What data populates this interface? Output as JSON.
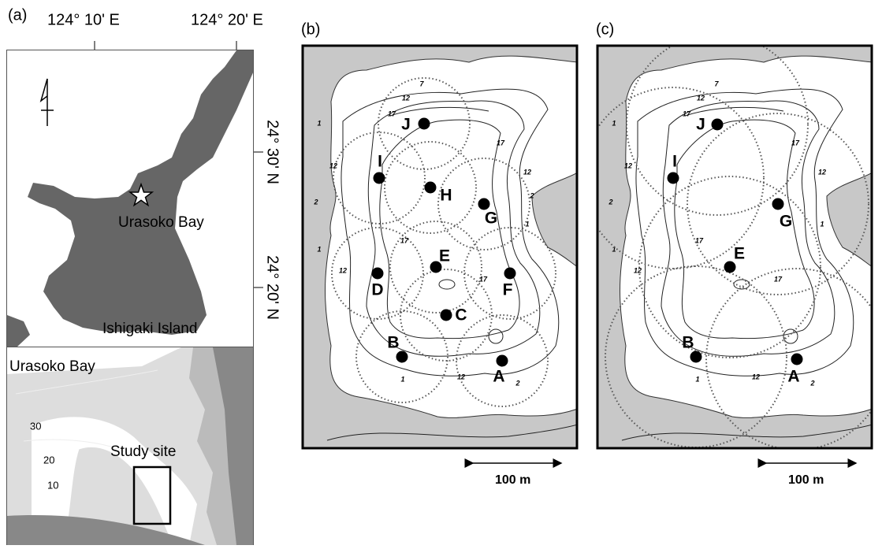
{
  "panel_a": {
    "label": "(a)",
    "lon_labels": [
      "124° 10' E",
      "124° 20' E"
    ],
    "lat_labels": [
      "24° 30' N",
      "24° 20' N"
    ],
    "place_labels": [
      "Urasoko Bay",
      "Ishigaki Island"
    ],
    "inset": {
      "title": "Urasoko Bay",
      "depth_labels": [
        "30",
        "20",
        "10"
      ],
      "site_label": "Study site"
    }
  },
  "panel_b": {
    "label": "(b)",
    "stations": [
      "A",
      "B",
      "C",
      "D",
      "E",
      "F",
      "G",
      "H",
      "I",
      "J"
    ],
    "contour_labels": [
      "7",
      "12",
      "17",
      "1",
      "12",
      "2",
      "17",
      "1",
      "12",
      "17",
      "12",
      "1",
      "2",
      "17",
      "12",
      "1",
      "2"
    ],
    "scale": "100 m"
  },
  "panel_c": {
    "label": "(c)",
    "stations": [
      "A",
      "B",
      "E",
      "G",
      "I",
      "J"
    ],
    "contour_labels": [
      "7",
      "12",
      "17",
      "1",
      "12",
      "2",
      "17",
      "1",
      "12",
      "17",
      "12",
      "1",
      "2",
      "17",
      "12",
      "1"
    ],
    "scale": "100 m"
  }
}
